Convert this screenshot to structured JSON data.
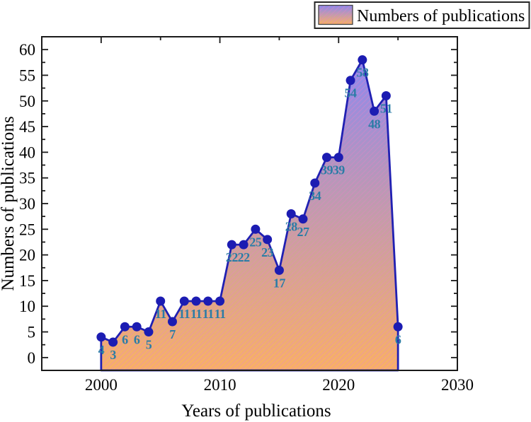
{
  "legend": {
    "label": "Numbers of publications"
  },
  "chart_data": {
    "type": "area",
    "title": "",
    "x_label": "Years of publications",
    "y_label": "Numbers of publications",
    "legend_entries": [
      "Numbers of publications"
    ],
    "legend_position": "top-right",
    "x": [
      2000,
      2001,
      2002,
      2003,
      2004,
      2005,
      2006,
      2007,
      2008,
      2009,
      2010,
      2011,
      2012,
      2013,
      2014,
      2015,
      2016,
      2017,
      2018,
      2019,
      2020,
      2021,
      2022,
      2023,
      2024,
      2025
    ],
    "values": [
      4,
      3,
      6,
      6,
      5,
      11,
      7,
      11,
      11,
      11,
      11,
      22,
      22,
      25,
      23,
      17,
      28,
      27,
      34,
      39,
      39,
      54,
      58,
      48,
      51,
      6
    ],
    "point_labels": [
      "4",
      "3",
      "6",
      "6",
      "5",
      "11",
      "7",
      "11",
      "11",
      "11",
      "11",
      "22",
      "22",
      "25",
      "23",
      "17",
      "28",
      "27",
      "34",
      "39",
      "39",
      "54",
      "58",
      "48",
      "51",
      "6"
    ],
    "xlim": [
      1995,
      2030
    ],
    "ylim": [
      -2.5,
      62.5
    ],
    "x_major_ticks": [
      2000,
      2010,
      2020,
      2030
    ],
    "x_minor_ticks": [
      2005,
      2015,
      2025
    ],
    "y_major_ticks": [
      0,
      5,
      10,
      15,
      20,
      25,
      30,
      35,
      40,
      45,
      50,
      55,
      60
    ],
    "y_minor_ticks": [
      2.5,
      7.5,
      12.5,
      17.5,
      22.5,
      27.5,
      32.5,
      37.5,
      42.5,
      47.5,
      52.5,
      57.5
    ],
    "grid": false,
    "marker": "circle",
    "colors": {
      "line": "#2020b2",
      "marker": "#1c1cb2",
      "point_label": "#2b7ca6",
      "gradient_top": "#8d88ef",
      "gradient_bottom": "#f9b164",
      "hatch": "#e87fc8",
      "axis": "#1a1a1a",
      "legend_border": "#262626",
      "text": "#000000",
      "background": "#ffffff"
    }
  }
}
